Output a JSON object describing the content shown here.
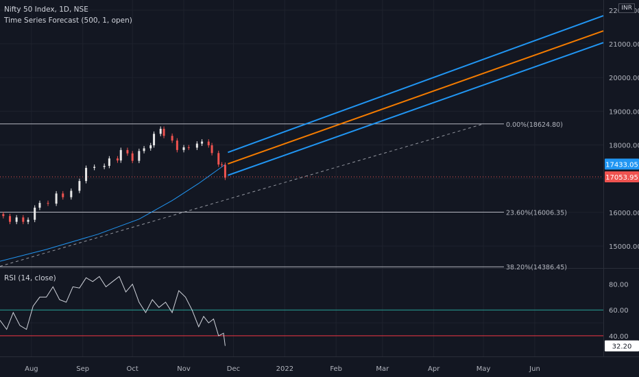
{
  "header": {
    "title": "Nifty 50 Index, 1D, NSE",
    "subtitle": "Time Series Forecast (500, 1, open)",
    "rsi_title": "RSI (14, close)",
    "currency": "INR"
  },
  "colors": {
    "background": "#131722",
    "grid": "#1e222d",
    "text": "#b2b5be",
    "candle_up": "#e8e8e8",
    "candle_down": "#ef5350",
    "forecast_mid": "#f57c00",
    "forecast_band": "#2196f3",
    "ma_line": "#2196f3",
    "fib_line": "#d1d4dc",
    "rsi_line": "#d1d4dc",
    "rsi_upper": "#26a69a",
    "rsi_lower": "#f23645"
  },
  "chart_data": [
    {
      "type": "candlestick",
      "x_axis": {
        "labels": [
          "Aug",
          "Sep",
          "Oct",
          "Nov",
          "Dec",
          "2022",
          "Feb",
          "Mar",
          "Apr",
          "May",
          "Jun"
        ]
      },
      "y_axis": {
        "ticks": [
          15000,
          16000,
          17000,
          18000,
          19000,
          20000,
          21000,
          22000
        ],
        "tick_labels": [
          "15000.00",
          "16000.00",
          "17000.00",
          "18000.00",
          "19000.00",
          "20000.00",
          "21000.00",
          "22000.00"
        ],
        "ylim": [
          14350,
          22300
        ]
      },
      "price_series": [
        {
          "date": "2021-07-15",
          "close": 15890
        },
        {
          "date": "2021-07-19",
          "close": 15720
        },
        {
          "date": "2021-07-23",
          "close": 15850
        },
        {
          "date": "2021-07-27",
          "close": 15720
        },
        {
          "date": "2021-07-30",
          "close": 15780
        },
        {
          "date": "2021-08-03",
          "close": 16140
        },
        {
          "date": "2021-08-06",
          "close": 16280
        },
        {
          "date": "2021-08-11",
          "close": 16260
        },
        {
          "date": "2021-08-16",
          "close": 16560
        },
        {
          "date": "2021-08-20",
          "close": 16450
        },
        {
          "date": "2021-08-25",
          "close": 16640
        },
        {
          "date": "2021-08-30",
          "close": 16930
        },
        {
          "date": "2021-09-03",
          "close": 17320
        },
        {
          "date": "2021-09-08",
          "close": 17350
        },
        {
          "date": "2021-09-14",
          "close": 17380
        },
        {
          "date": "2021-09-17",
          "close": 17600
        },
        {
          "date": "2021-09-22",
          "close": 17540
        },
        {
          "date": "2021-09-24",
          "close": 17850
        },
        {
          "date": "2021-09-28",
          "close": 17750
        },
        {
          "date": "2021-10-01",
          "close": 17530
        },
        {
          "date": "2021-10-05",
          "close": 17820
        },
        {
          "date": "2021-10-08",
          "close": 17900
        },
        {
          "date": "2021-10-12",
          "close": 17990
        },
        {
          "date": "2021-10-14",
          "close": 18330
        },
        {
          "date": "2021-10-18",
          "close": 18480
        },
        {
          "date": "2021-10-20",
          "close": 18270
        },
        {
          "date": "2021-10-25",
          "close": 18130
        },
        {
          "date": "2021-10-28",
          "close": 17850
        },
        {
          "date": "2021-11-01",
          "close": 17930
        },
        {
          "date": "2021-11-04",
          "close": 17920
        },
        {
          "date": "2021-11-09",
          "close": 18040
        },
        {
          "date": "2021-11-12",
          "close": 18100
        },
        {
          "date": "2021-11-16",
          "close": 17990
        },
        {
          "date": "2021-11-18",
          "close": 17760
        },
        {
          "date": "2021-11-22",
          "close": 17420
        },
        {
          "date": "2021-11-24",
          "close": 17410
        },
        {
          "date": "2021-11-26",
          "close": 17030
        }
      ],
      "ma_line": [
        {
          "date": "2021-07-13",
          "value": 14550
        },
        {
          "date": "2021-08-10",
          "value": 14900
        },
        {
          "date": "2021-09-10",
          "value": 15350
        },
        {
          "date": "2021-10-05",
          "value": 15800
        },
        {
          "date": "2021-10-25",
          "value": 16350
        },
        {
          "date": "2021-11-10",
          "value": 16860
        },
        {
          "date": "2021-11-26",
          "value": 17420
        }
      ],
      "forecast": {
        "middle": [
          {
            "date": "2021-11-26",
            "value": 17440
          },
          {
            "date": "2022-06-30",
            "value": 21100
          }
        ],
        "upper": [
          {
            "date": "2021-11-26",
            "value": 17780
          },
          {
            "date": "2022-06-30",
            "value": 21550
          }
        ],
        "lower": [
          {
            "date": "2021-11-26",
            "value": 17100
          },
          {
            "date": "2022-06-30",
            "value": 20750
          }
        ]
      },
      "trend_line": [
        {
          "date": "2021-07-13",
          "value": 14400
        },
        {
          "date": "2022-05-01",
          "value": 18624.8
        }
      ],
      "fib_levels": [
        {
          "label": "0.00%(18624.80)",
          "value": 18624.8
        },
        {
          "label": "23.60%(16006.35)",
          "value": 16006.35
        },
        {
          "label": "38.20%(14386.45)",
          "value": 14386.45
        }
      ],
      "price_tags": [
        {
          "label": "17433.05",
          "value": 17433.05,
          "color": "#2196f3"
        },
        {
          "label": "17053.95",
          "value": 17053.95,
          "color": "#ef5350"
        }
      ],
      "current_price_line": 17053.95
    },
    {
      "type": "line",
      "name": "RSI (14, close)",
      "y_axis": {
        "ticks": [
          40,
          60,
          80
        ],
        "tick_labels": [
          "40.00",
          "60.00",
          "80.00"
        ],
        "ylim": [
          24,
          92
        ]
      },
      "levels": [
        {
          "value": 60,
          "color": "#26a69a"
        },
        {
          "value": 40,
          "color": "#f23645"
        }
      ],
      "series": [
        {
          "date": "2021-07-13",
          "value": 52
        },
        {
          "date": "2021-07-17",
          "value": 45
        },
        {
          "date": "2021-07-21",
          "value": 58
        },
        {
          "date": "2021-07-25",
          "value": 48
        },
        {
          "date": "2021-07-29",
          "value": 45
        },
        {
          "date": "2021-08-02",
          "value": 63
        },
        {
          "date": "2021-08-06",
          "value": 70
        },
        {
          "date": "2021-08-10",
          "value": 70
        },
        {
          "date": "2021-08-14",
          "value": 78
        },
        {
          "date": "2021-08-18",
          "value": 68
        },
        {
          "date": "2021-08-22",
          "value": 66
        },
        {
          "date": "2021-08-26",
          "value": 78
        },
        {
          "date": "2021-08-30",
          "value": 77
        },
        {
          "date": "2021-09-03",
          "value": 85
        },
        {
          "date": "2021-09-07",
          "value": 82
        },
        {
          "date": "2021-09-11",
          "value": 86
        },
        {
          "date": "2021-09-15",
          "value": 78
        },
        {
          "date": "2021-09-19",
          "value": 82
        },
        {
          "date": "2021-09-23",
          "value": 86
        },
        {
          "date": "2021-09-27",
          "value": 74
        },
        {
          "date": "2021-10-01",
          "value": 80
        },
        {
          "date": "2021-10-05",
          "value": 66
        },
        {
          "date": "2021-10-09",
          "value": 58
        },
        {
          "date": "2021-10-13",
          "value": 68
        },
        {
          "date": "2021-10-17",
          "value": 62
        },
        {
          "date": "2021-10-21",
          "value": 66
        },
        {
          "date": "2021-10-25",
          "value": 58
        },
        {
          "date": "2021-10-29",
          "value": 75
        },
        {
          "date": "2021-11-02",
          "value": 70
        },
        {
          "date": "2021-11-06",
          "value": 60
        },
        {
          "date": "2021-11-10",
          "value": 47
        },
        {
          "date": "2021-11-13",
          "value": 55
        },
        {
          "date": "2021-11-16",
          "value": 50
        },
        {
          "date": "2021-11-19",
          "value": 53
        },
        {
          "date": "2021-11-22",
          "value": 40
        },
        {
          "date": "2021-11-25",
          "value": 42
        },
        {
          "date": "2021-11-26",
          "value": 32.2
        }
      ],
      "last_value_label": "32.20"
    }
  ]
}
